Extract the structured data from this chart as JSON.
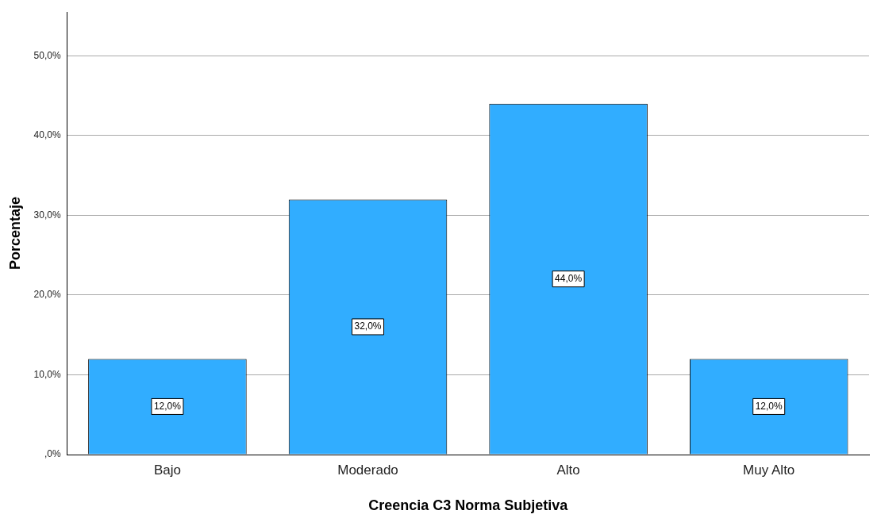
{
  "chart_data": {
    "type": "bar",
    "xlabel": "Creencia C3 Norma Subjetiva",
    "ylabel": "Porcentaje",
    "categories": [
      "Bajo",
      "Moderado",
      "Alto",
      "Muy Alto"
    ],
    "values": [
      12,
      32,
      44,
      12
    ],
    "color": "#31adff",
    "value_labels": [
      "12,0%",
      "32,0%",
      "44,0%",
      "12,0%"
    ],
    "ylim": [
      0,
      55.5
    ],
    "yticks": [
      {
        "value": 0,
        "label": ",0%"
      },
      {
        "value": 10,
        "label": "10,0%"
      },
      {
        "value": 20,
        "label": "20,0%"
      },
      {
        "value": 30,
        "label": "30,0%"
      },
      {
        "value": 40,
        "label": "40,0%"
      },
      {
        "value": 50,
        "label": "50,0%"
      }
    ],
    "grid": "y",
    "legend": false
  }
}
